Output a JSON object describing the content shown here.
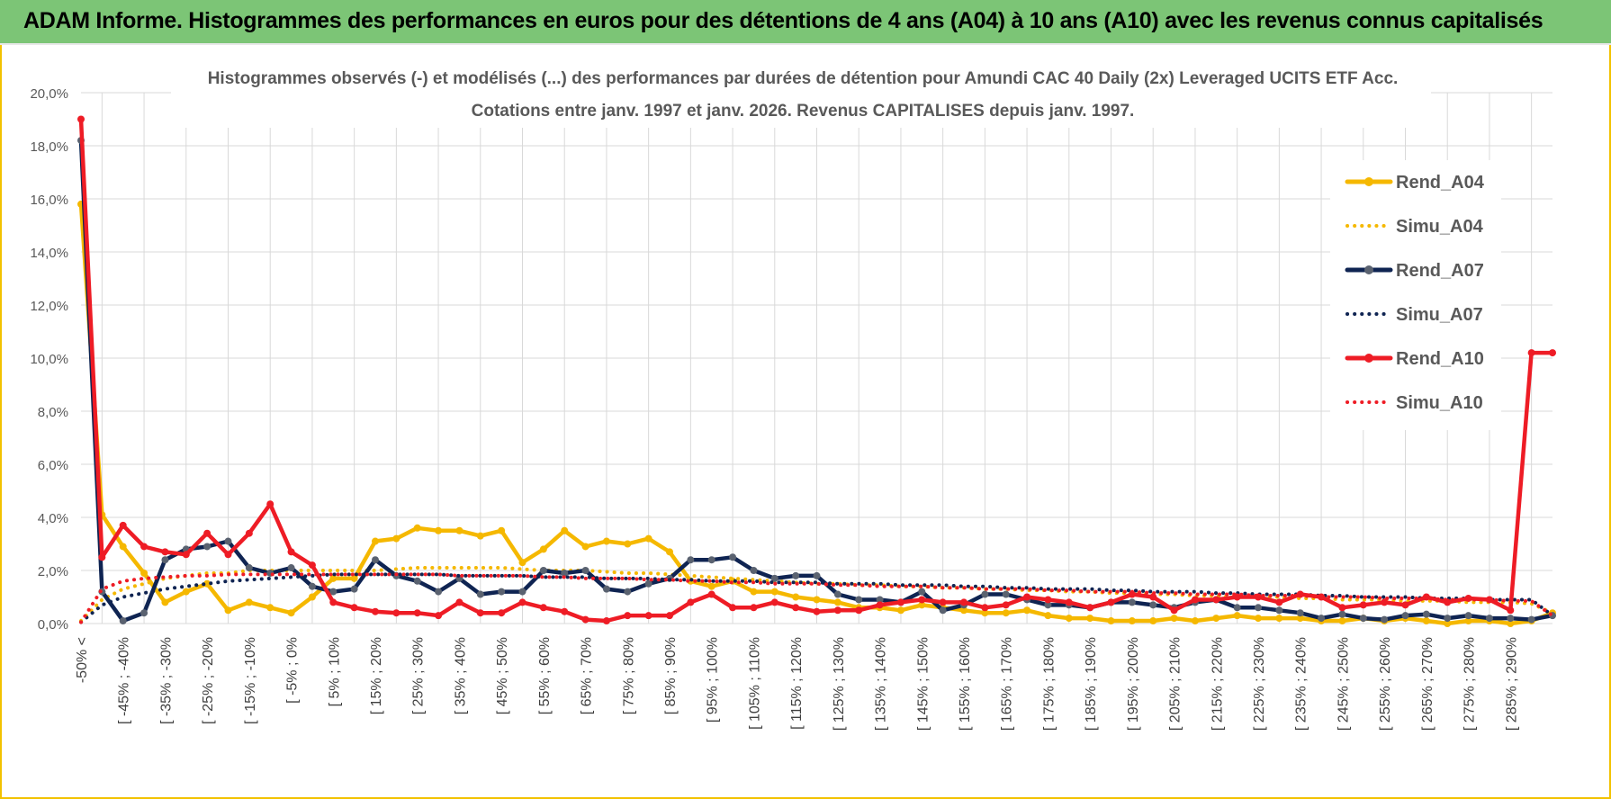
{
  "banner": {
    "title": "ADAM Informe. Histogrammes des performances en euros pour des détentions de 4 ans (A04) à 10 ans (A10) avec les revenus connus capitalisés"
  },
  "chart_data": {
    "type": "line",
    "title_line1": "Histogrammes observés (-) et modélisés (...) des performances par durées de détention pour Amundi CAC 40 Daily (2x) Leveraged UCITS ETF Acc.",
    "title_line2": "Cotations entre janv. 1997 et janv. 2026. Revenus CAPITALISES depuis janv. 1997.",
    "y_ticks": [
      "0,0%",
      "2,0%",
      "4,0%",
      "6,0%",
      "8,0%",
      "10,0%",
      "12,0%",
      "14,0%",
      "16,0%",
      "18,0%",
      "20,0%"
    ],
    "ylim": [
      0,
      20
    ],
    "grid": true,
    "legend_position": "right",
    "x_labels": [
      "-50% <",
      "[ -45% ; -40%",
      "[ -35% ; -30%",
      "[ -25% ; -20%",
      "[ -15% ; -10%",
      "[ -5% ; 0%",
      "[ 5% ; 10%",
      "[ 15% ; 20%",
      "[ 25% ; 30%",
      "[ 35% ; 40%",
      "[ 45% ; 50%",
      "[ 55% ; 60%",
      "[ 65% ; 70%",
      "[ 75% ; 80%",
      "[ 85% ; 90%",
      "[ 95% ; 100%",
      "[ 105% ; 110%",
      "[ 115% ; 120%",
      "[ 125% ; 130%",
      "[ 135% ; 140%",
      "[ 145% ; 150%",
      "[ 155% ; 160%",
      "[ 165% ; 170%",
      "[ 175% ; 180%",
      "[ 185% ; 190%",
      "[ 195% ; 200%",
      "[ 205% ; 210%",
      "[ 215% ; 220%",
      "[ 225% ; 230%",
      "[ 235% ; 240%",
      "[ 245% ; 250%",
      "[ 255% ; 260%",
      "[ 265% ; 270%",
      "[ 275% ; 280%",
      "[ 285% ; 290%"
    ],
    "n_points": 71,
    "series": [
      {
        "name": "Rend_A04",
        "style": "solid",
        "color": "#f5b800",
        "values": [
          15.8,
          4.1,
          2.9,
          1.9,
          0.8,
          1.2,
          1.5,
          0.5,
          0.8,
          0.6,
          0.4,
          1.0,
          1.7,
          1.7,
          3.1,
          3.2,
          3.6,
          3.5,
          3.5,
          3.3,
          3.5,
          2.3,
          2.8,
          3.5,
          2.9,
          3.1,
          3.0,
          3.2,
          2.7,
          1.6,
          1.4,
          1.6,
          1.2,
          1.2,
          1.0,
          0.9,
          0.8,
          0.6,
          0.6,
          0.5,
          0.7,
          0.6,
          0.5,
          0.4,
          0.4,
          0.5,
          0.3,
          0.2,
          0.2,
          0.1,
          0.1,
          0.1,
          0.2,
          0.1,
          0.2,
          0.3,
          0.2,
          0.2,
          0.2,
          0.1,
          0.1,
          0.2,
          0.1,
          0.2,
          0.1,
          0.0,
          0.1,
          0.1,
          0.0,
          0.1,
          0.4
        ]
      },
      {
        "name": "Simu_A04",
        "style": "dotted",
        "color": "#f5b800",
        "values": [
          0.1,
          0.9,
          1.3,
          1.5,
          1.7,
          1.8,
          1.9,
          1.9,
          2.0,
          2.0,
          2.0,
          2.0,
          2.0,
          2.0,
          2.0,
          2.05,
          2.1,
          2.1,
          2.1,
          2.1,
          2.1,
          2.05,
          2.0,
          2.0,
          2.0,
          1.95,
          1.9,
          1.9,
          1.85,
          1.8,
          1.75,
          1.7,
          1.65,
          1.6,
          1.55,
          1.5,
          1.5,
          1.45,
          1.45,
          1.4,
          1.4,
          1.35,
          1.35,
          1.3,
          1.3,
          1.25,
          1.25,
          1.2,
          1.2,
          1.15,
          1.15,
          1.1,
          1.1,
          1.05,
          1.05,
          1.0,
          1.0,
          1.0,
          0.95,
          0.95,
          0.9,
          0.9,
          0.9,
          0.85,
          0.85,
          0.85,
          0.8,
          0.8,
          0.8,
          0.75,
          0.4
        ]
      },
      {
        "name": "Rend_A07",
        "style": "solid",
        "color": "#0f2452",
        "values": [
          18.2,
          1.2,
          0.1,
          0.4,
          2.4,
          2.8,
          2.9,
          3.1,
          2.1,
          1.9,
          2.1,
          1.4,
          1.2,
          1.3,
          2.4,
          1.8,
          1.6,
          1.2,
          1.7,
          1.1,
          1.2,
          1.2,
          2.0,
          1.9,
          2.0,
          1.3,
          1.2,
          1.5,
          1.7,
          2.4,
          2.4,
          2.5,
          2.0,
          1.7,
          1.8,
          1.8,
          1.1,
          0.9,
          0.9,
          0.8,
          1.2,
          0.5,
          0.7,
          1.1,
          1.1,
          0.9,
          0.7,
          0.7,
          0.6,
          0.8,
          0.8,
          0.7,
          0.6,
          0.8,
          0.9,
          0.6,
          0.6,
          0.5,
          0.4,
          0.2,
          0.35,
          0.2,
          0.15,
          0.3,
          0.35,
          0.2,
          0.3,
          0.2,
          0.2,
          0.15,
          0.3
        ]
      },
      {
        "name": "Simu_A07",
        "style": "dotted",
        "color": "#0f2452",
        "values": [
          0.05,
          0.7,
          1.0,
          1.15,
          1.3,
          1.4,
          1.5,
          1.6,
          1.65,
          1.7,
          1.75,
          1.8,
          1.85,
          1.85,
          1.85,
          1.85,
          1.85,
          1.85,
          1.8,
          1.8,
          1.8,
          1.8,
          1.75,
          1.75,
          1.75,
          1.7,
          1.7,
          1.7,
          1.65,
          1.65,
          1.6,
          1.6,
          1.6,
          1.55,
          1.55,
          1.55,
          1.5,
          1.5,
          1.5,
          1.45,
          1.45,
          1.45,
          1.4,
          1.4,
          1.35,
          1.35,
          1.3,
          1.3,
          1.3,
          1.25,
          1.25,
          1.2,
          1.2,
          1.2,
          1.15,
          1.15,
          1.1,
          1.1,
          1.1,
          1.05,
          1.05,
          1.0,
          1.0,
          1.0,
          0.95,
          0.95,
          0.95,
          0.9,
          0.9,
          0.9,
          0.3
        ]
      },
      {
        "name": "Rend_A10",
        "style": "solid",
        "color": "#ee1c25",
        "values": [
          19.0,
          2.5,
          3.7,
          2.9,
          2.7,
          2.6,
          3.4,
          2.6,
          3.4,
          4.5,
          2.7,
          2.2,
          0.8,
          0.6,
          0.45,
          0.4,
          0.4,
          0.3,
          0.8,
          0.4,
          0.4,
          0.8,
          0.6,
          0.45,
          0.15,
          0.1,
          0.3,
          0.3,
          0.3,
          0.8,
          1.1,
          0.6,
          0.6,
          0.8,
          0.6,
          0.45,
          0.5,
          0.5,
          0.7,
          0.8,
          0.9,
          0.8,
          0.8,
          0.6,
          0.7,
          1.0,
          0.9,
          0.8,
          0.6,
          0.8,
          1.1,
          1.0,
          0.5,
          0.9,
          0.9,
          1.0,
          1.0,
          0.8,
          1.1,
          1.0,
          0.6,
          0.7,
          0.8,
          0.7,
          1.0,
          0.8,
          0.95,
          0.9,
          0.5,
          10.2,
          10.2
        ]
      },
      {
        "name": "Simu_A10",
        "style": "dotted",
        "color": "#ee1c25",
        "values": [
          0.05,
          1.3,
          1.6,
          1.7,
          1.75,
          1.8,
          1.8,
          1.85,
          1.85,
          1.85,
          1.85,
          1.85,
          1.85,
          1.85,
          1.85,
          1.85,
          1.85,
          1.85,
          1.8,
          1.8,
          1.8,
          1.8,
          1.75,
          1.75,
          1.7,
          1.7,
          1.7,
          1.65,
          1.65,
          1.6,
          1.6,
          1.55,
          1.55,
          1.5,
          1.5,
          1.5,
          1.45,
          1.45,
          1.4,
          1.4,
          1.4,
          1.35,
          1.35,
          1.3,
          1.3,
          1.3,
          1.25,
          1.25,
          1.2,
          1.2,
          1.2,
          1.15,
          1.15,
          1.1,
          1.1,
          1.1,
          1.05,
          1.05,
          1.05,
          1.0,
          1.0,
          1.0,
          0.95,
          0.95,
          0.95,
          0.9,
          0.9,
          0.9,
          0.85,
          0.85,
          0.3
        ]
      }
    ]
  }
}
